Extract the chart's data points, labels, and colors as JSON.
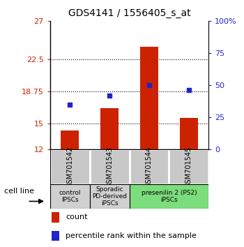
{
  "title": "GDS4141 / 1556405_s_at",
  "samples": [
    "GSM701542",
    "GSM701543",
    "GSM701544",
    "GSM701545"
  ],
  "bar_values": [
    14.2,
    16.8,
    24.0,
    15.7
  ],
  "percentile_values": [
    35,
    42,
    50,
    46
  ],
  "ylim_left": [
    12,
    27
  ],
  "ylim_right": [
    0,
    100
  ],
  "yticks_left": [
    12,
    15,
    18.75,
    22.5,
    27
  ],
  "ytick_labels_left": [
    "12",
    "15",
    "18.75",
    "22.5",
    "27"
  ],
  "yticks_right": [
    0,
    25,
    50,
    75,
    100
  ],
  "ytick_labels_right": [
    "0",
    "25",
    "50",
    "75",
    "100%"
  ],
  "bar_color": "#cc2200",
  "marker_color": "#2222cc",
  "bar_width": 0.45,
  "group_info": [
    {
      "text": "control\nIPSCs",
      "xmin": -0.5,
      "xmax": 0.5,
      "color": "#d0d0d0"
    },
    {
      "text": "Sporadic\nPD-derived\niPSCs",
      "xmin": 0.5,
      "xmax": 1.5,
      "color": "#d0d0d0"
    },
    {
      "text": "presenilin 2 (PS2)\niPSCs",
      "xmin": 1.5,
      "xmax": 3.5,
      "color": "#7cdd7c"
    }
  ],
  "legend_count_label": "count",
  "legend_percentile_label": "percentile rank within the sample",
  "cell_line_label": "cell line",
  "sample_box_color": "#c8c8c8",
  "dotted_lines": [
    15,
    18.75,
    22.5
  ]
}
